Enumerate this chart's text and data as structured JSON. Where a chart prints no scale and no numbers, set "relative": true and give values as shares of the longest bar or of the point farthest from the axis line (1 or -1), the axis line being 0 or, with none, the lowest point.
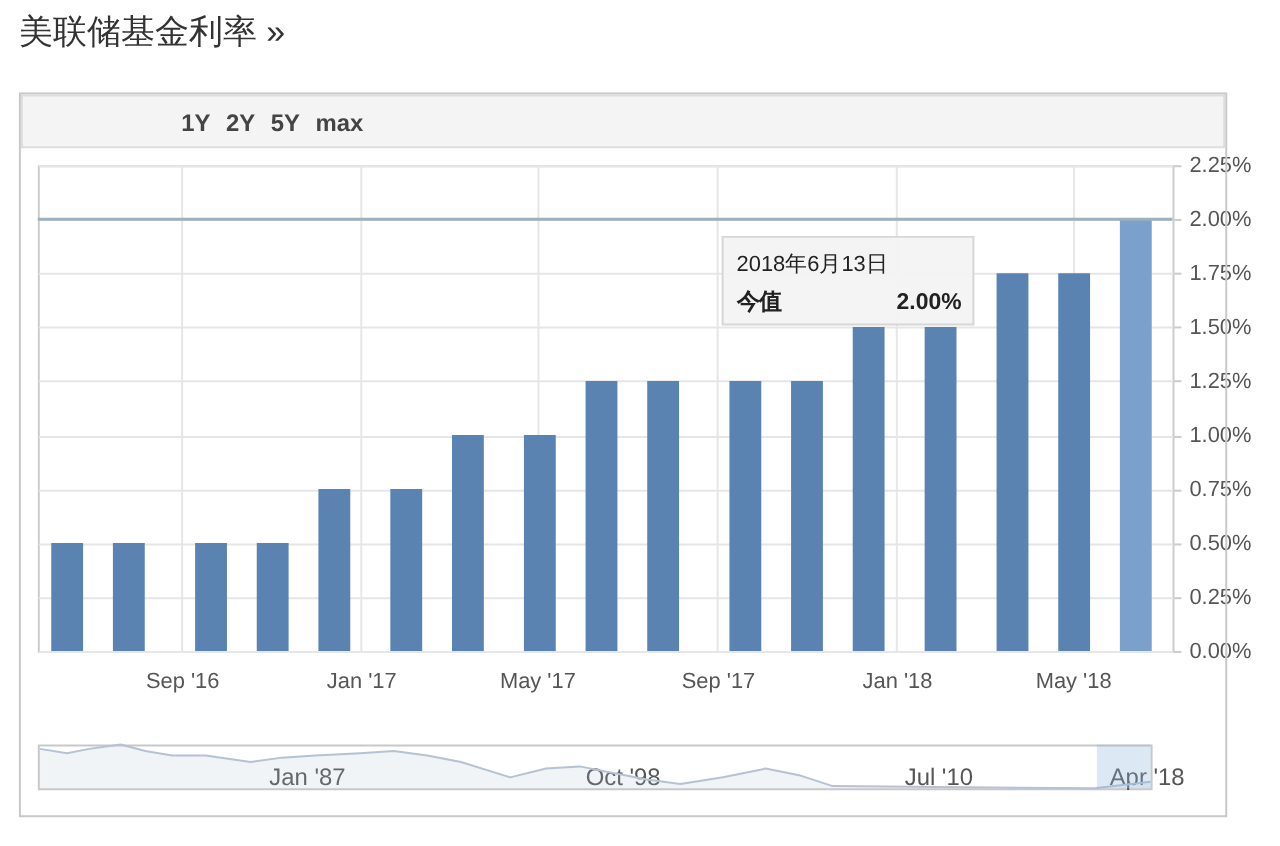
{
  "chart_data": [
    {
      "type": "bar",
      "title": "美联储基金利率 »",
      "x": [
        "2016-06-15",
        "2016-07-27",
        "2016-09-21",
        "2016-11-02",
        "2016-12-14",
        "2017-02-01",
        "2017-03-15",
        "2017-05-03",
        "2017-06-14",
        "2017-07-26",
        "2017-09-20",
        "2017-11-01",
        "2017-12-13",
        "2018-01-31",
        "2018-03-21",
        "2018-05-02",
        "2018-06-13"
      ],
      "values": [
        0.5,
        0.5,
        0.5,
        0.5,
        0.75,
        0.75,
        1.0,
        1.0,
        1.25,
        1.25,
        1.25,
        1.25,
        1.5,
        1.5,
        1.75,
        1.75,
        2.0
      ],
      "colors": [
        "#5b83b1",
        "#5b83b1",
        "#5b83b1",
        "#5b83b1",
        "#5b83b1",
        "#5b83b1",
        "#5b83b1",
        "#5b83b1",
        "#5b83b1",
        "#5b83b1",
        "#5b83b1",
        "#5b83b1",
        "#5b83b1",
        "#5b83b1",
        "#5b83b1",
        "#5b83b1",
        "#7ca0cc"
      ],
      "xlim": [
        "2016-05-26",
        "2018-07-08"
      ],
      "xticks": [
        {
          "value": "2016-09-01",
          "label": "Sep '16"
        },
        {
          "value": "2017-01-01",
          "label": "Jan '17"
        },
        {
          "value": "2017-05-01",
          "label": "May '17"
        },
        {
          "value": "2017-09-01",
          "label": "Sep '17"
        },
        {
          "value": "2018-01-01",
          "label": "Jan '18"
        },
        {
          "value": "2018-05-01",
          "label": "May '18"
        }
      ],
      "ylim": [
        0,
        2.25
      ],
      "yticks": [
        {
          "value": 0,
          "label": "0.00%"
        },
        {
          "value": 0.25,
          "label": "0.25%"
        },
        {
          "value": 0.5,
          "label": "0.50%"
        },
        {
          "value": 0.75,
          "label": "0.75%"
        },
        {
          "value": 1.0,
          "label": "1.00%"
        },
        {
          "value": 1.25,
          "label": "1.25%"
        },
        {
          "value": 1.5,
          "label": "1.50%"
        },
        {
          "value": 1.75,
          "label": "1.75%"
        },
        {
          "value": 2.0,
          "label": "2.00%"
        },
        {
          "value": 2.25,
          "label": "2.25%"
        }
      ],
      "grid": true,
      "ref_lines": [
        {
          "axis": "y",
          "value": 2.0,
          "color": "#9db1be"
        }
      ],
      "annotations": [
        "1Y",
        "2Y",
        "5Y",
        "max",
        "2018年6月13日",
        "今值",
        "2.00%"
      ]
    },
    {
      "type": "area",
      "relative": true,
      "x": [
        "1977-02",
        "1978-02",
        "1978-12",
        "1980-02",
        "1981-01",
        "1982-01",
        "1983-04",
        "1984-12",
        "1986-02",
        "1987-05",
        "1989-01",
        "1990-04",
        "1991-07",
        "1992-10",
        "1994-08",
        "1995-12",
        "1997-03",
        "1998-06",
        "1999-09",
        "2000-12",
        "2002-07",
        "2004-02",
        "2005-05",
        "2006-08",
        "2016-05",
        "2018-06"
      ],
      "series": [
        {
          "color": "#b4c2d2",
          "values": [
            0.9,
            0.8,
            0.9,
            1,
            0.85,
            0.75,
            0.75,
            0.6,
            0.7,
            0.75,
            0.8,
            0.85,
            0.75,
            0.6,
            0.25,
            0.45,
            0.5,
            0.35,
            0.2,
            0.1,
            0.25,
            0.45,
            0.3,
            0.05,
            0,
            0.15
          ]
        }
      ],
      "xlim": [
        "1977-01",
        "2018-06"
      ],
      "xticks": [
        {
          "value": "1987-01",
          "label": "Jan '87"
        },
        {
          "value": "1998-10",
          "label": "Oct '98"
        },
        {
          "value": "2010-07",
          "label": "Jul '10"
        },
        {
          "value": "2018-04",
          "label": "Apr '18"
        }
      ],
      "bands": [
        {
          "axis": "x",
          "from": "2016-06",
          "to": "2018-06",
          "color": "#8fb2de"
        }
      ]
    }
  ]
}
